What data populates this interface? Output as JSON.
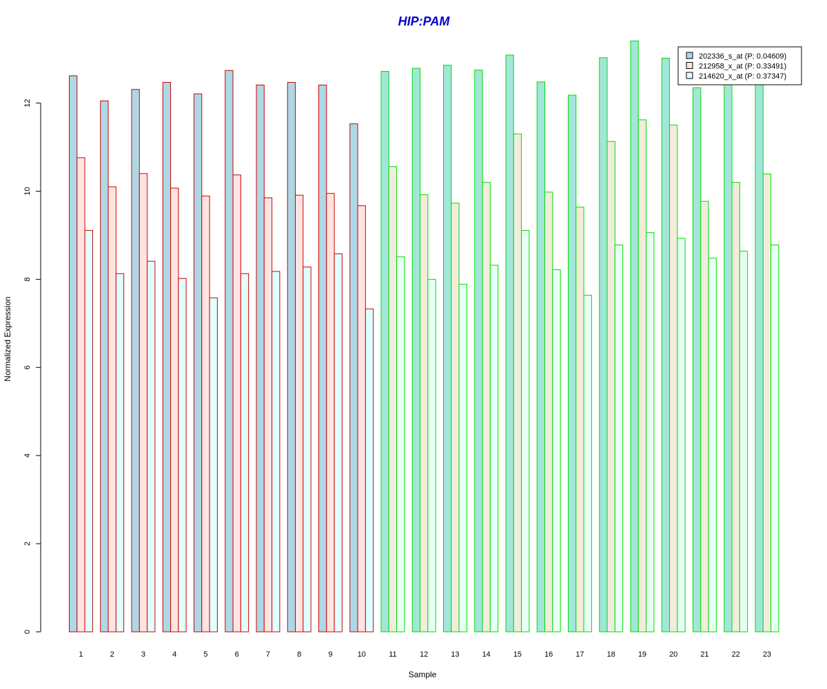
{
  "chart_data": {
    "type": "bar",
    "title": "HIP:PAM",
    "xlabel": "Sample",
    "ylabel": "Normalized Expression",
    "ylim": [
      0,
      13.5
    ],
    "yticks": [
      0,
      2,
      4,
      6,
      8,
      10,
      12
    ],
    "categories": [
      "1",
      "2",
      "3",
      "4",
      "5",
      "6",
      "7",
      "8",
      "9",
      "10",
      "11",
      "12",
      "13",
      "14",
      "15",
      "16",
      "17",
      "18",
      "19",
      "20",
      "21",
      "22",
      "23"
    ],
    "series": [
      {
        "name": "202336_s_at (P: 0.04609)",
        "values": [
          12.62,
          12.05,
          12.31,
          12.47,
          12.21,
          12.74,
          12.41,
          12.47,
          12.41,
          11.53,
          12.72,
          12.79,
          12.86,
          12.75,
          13.09,
          12.48,
          12.18,
          13.03,
          13.41,
          13.02,
          12.35,
          12.47,
          12.62
        ]
      },
      {
        "name": "212958_x_at (P: 0.33491)",
        "values": [
          10.76,
          10.1,
          10.4,
          10.07,
          9.89,
          10.37,
          9.85,
          9.91,
          9.95,
          9.67,
          10.56,
          9.92,
          9.73,
          10.2,
          11.3,
          9.98,
          9.64,
          11.13,
          11.62,
          11.5,
          9.77,
          10.2,
          10.39
        ]
      },
      {
        "name": "214620_x_at (P: 0.37347)",
        "values": [
          9.11,
          8.13,
          8.41,
          8.02,
          7.58,
          8.13,
          8.18,
          8.28,
          8.58,
          7.33,
          8.51,
          8.0,
          7.89,
          8.32,
          9.11,
          8.22,
          7.64,
          8.78,
          9.06,
          8.93,
          8.48,
          8.64,
          8.78
        ]
      }
    ],
    "group_of_sample": [
      "red",
      "red",
      "red",
      "red",
      "red",
      "red",
      "red",
      "red",
      "red",
      "red",
      "green",
      "green",
      "green",
      "green",
      "green",
      "green",
      "green",
      "green",
      "green",
      "green",
      "green",
      "green",
      "green"
    ],
    "colors": {
      "title": "#0000CC",
      "border_red": "#CC0000",
      "border_green": "#00DD00",
      "fills_red_group": [
        "#ADD8E6",
        "#FFE4E1",
        "#E0FFFF"
      ],
      "fills_green_group": [
        "#A1E6D9",
        "#F2ECDD",
        "#E8FFF5"
      ],
      "legend_fills": [
        "#ADD8E6",
        "#FFE4E1",
        "#E0FFFF"
      ]
    },
    "legend_position": "top-right",
    "grid": false
  }
}
